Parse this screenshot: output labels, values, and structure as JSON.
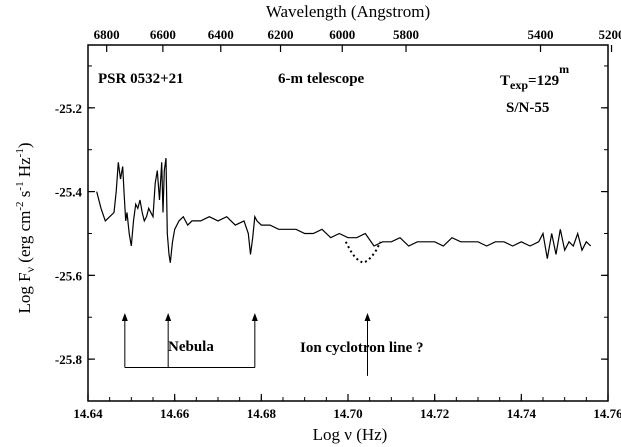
{
  "chart_data": {
    "type": "line",
    "xlabel_prefix": "Log ",
    "xlabel_symbol": "ν",
    "xlabel_suffix": " (Hz)",
    "top_axis_label": "Wavelength (Angstrom)",
    "ylabel_prefix": "Log F",
    "ylabel_sub": "ν",
    "ylabel_unit_open": " (erg cm",
    "ylabel_exp1": "-2",
    "ylabel_mid1": " s",
    "ylabel_exp2": "-1",
    "ylabel_mid2": " Hz",
    "ylabel_exp3": "-1",
    "ylabel_close": ")",
    "xlim": [
      14.64,
      14.76
    ],
    "ylim": [
      -25.9,
      -25.05
    ],
    "x_ticks": [
      "14.64",
      "14.66",
      "14.68",
      "14.70",
      "14.72",
      "14.74",
      "14.76"
    ],
    "y_ticks": [
      "-25.2",
      "-25.4",
      "-25.6",
      "-25.8"
    ],
    "top_ticks": [
      "6800",
      "6600",
      "6400",
      "6200",
      "6000",
      "5800",
      "5400",
      "5200"
    ],
    "annotations": {
      "object": "PSR 0532+21",
      "telescope": "6-m telescope",
      "texp_prefix": "T",
      "texp_sub": "exp",
      "texp_value": "=129",
      "texp_sup": "m",
      "snr": "S/N-55",
      "nebula": "Nebula",
      "cyclotron": "Ion cyclotron line ?"
    },
    "series": [
      {
        "style": "solid",
        "x": [
          14.642,
          14.643,
          14.644,
          14.645,
          14.646,
          14.6465,
          14.647,
          14.6475,
          14.648,
          14.6483,
          14.6487,
          14.649,
          14.6495,
          14.65,
          14.6505,
          14.651,
          14.6515,
          14.652,
          14.6525,
          14.653,
          14.6535,
          14.654,
          14.655,
          14.6555,
          14.656,
          14.6565,
          14.657,
          14.6573,
          14.6576,
          14.658,
          14.6583,
          14.6587,
          14.659,
          14.6595,
          14.66,
          14.661,
          14.662,
          14.663,
          14.664,
          14.666,
          14.668,
          14.67,
          14.672,
          14.674,
          14.676,
          14.677,
          14.6775,
          14.678,
          14.6785,
          14.679,
          14.68,
          14.682,
          14.684,
          14.686,
          14.688,
          14.69,
          14.692,
          14.694,
          14.696,
          14.698,
          14.7,
          14.702,
          14.704,
          14.706,
          14.708,
          14.71,
          14.712,
          14.714,
          14.716,
          14.718,
          14.72,
          14.722,
          14.724,
          14.726,
          14.728,
          14.73,
          14.732,
          14.734,
          14.736,
          14.738,
          14.74,
          14.742,
          14.744,
          14.745,
          14.746,
          14.747,
          14.748,
          14.749,
          14.75,
          14.751,
          14.752,
          14.753,
          14.754,
          14.755,
          14.756
        ],
        "y": [
          -25.4,
          -25.44,
          -25.47,
          -25.46,
          -25.45,
          -25.4,
          -25.33,
          -25.37,
          -25.34,
          -25.4,
          -25.47,
          -25.45,
          -25.5,
          -25.53,
          -25.47,
          -25.43,
          -25.44,
          -25.42,
          -25.45,
          -25.47,
          -25.46,
          -25.44,
          -25.46,
          -25.38,
          -25.35,
          -25.42,
          -25.33,
          -25.45,
          -25.35,
          -25.32,
          -25.5,
          -25.55,
          -25.57,
          -25.52,
          -25.49,
          -25.47,
          -25.46,
          -25.48,
          -25.47,
          -25.47,
          -25.46,
          -25.47,
          -25.46,
          -25.48,
          -25.47,
          -25.5,
          -25.55,
          -25.51,
          -25.46,
          -25.47,
          -25.48,
          -25.48,
          -25.49,
          -25.49,
          -25.49,
          -25.5,
          -25.5,
          -25.49,
          -25.51,
          -25.5,
          -25.51,
          -25.51,
          -25.5,
          -25.53,
          -25.52,
          -25.52,
          -25.51,
          -25.53,
          -25.52,
          -25.52,
          -25.52,
          -25.53,
          -25.51,
          -25.52,
          -25.52,
          -25.52,
          -25.53,
          -25.52,
          -25.52,
          -25.53,
          -25.52,
          -25.53,
          -25.52,
          -25.5,
          -25.56,
          -25.5,
          -25.55,
          -25.49,
          -25.54,
          -25.52,
          -25.53,
          -25.5,
          -25.54,
          -25.52,
          -25.53
        ]
      },
      {
        "style": "dotted",
        "x": [
          14.6995,
          14.7005,
          14.7015,
          14.7025,
          14.7035,
          14.7045,
          14.7055,
          14.7065,
          14.7075
        ],
        "y": [
          -25.52,
          -25.54,
          -25.555,
          -25.565,
          -25.57,
          -25.565,
          -25.555,
          -25.54,
          -25.52
        ]
      }
    ],
    "arrows": [
      {
        "group": "nebula",
        "x": 14.6485
      },
      {
        "group": "nebula",
        "x": 14.6585
      },
      {
        "group": "nebula",
        "x": 14.6785
      },
      {
        "group": "cyclotron",
        "x": 14.7045
      }
    ]
  }
}
